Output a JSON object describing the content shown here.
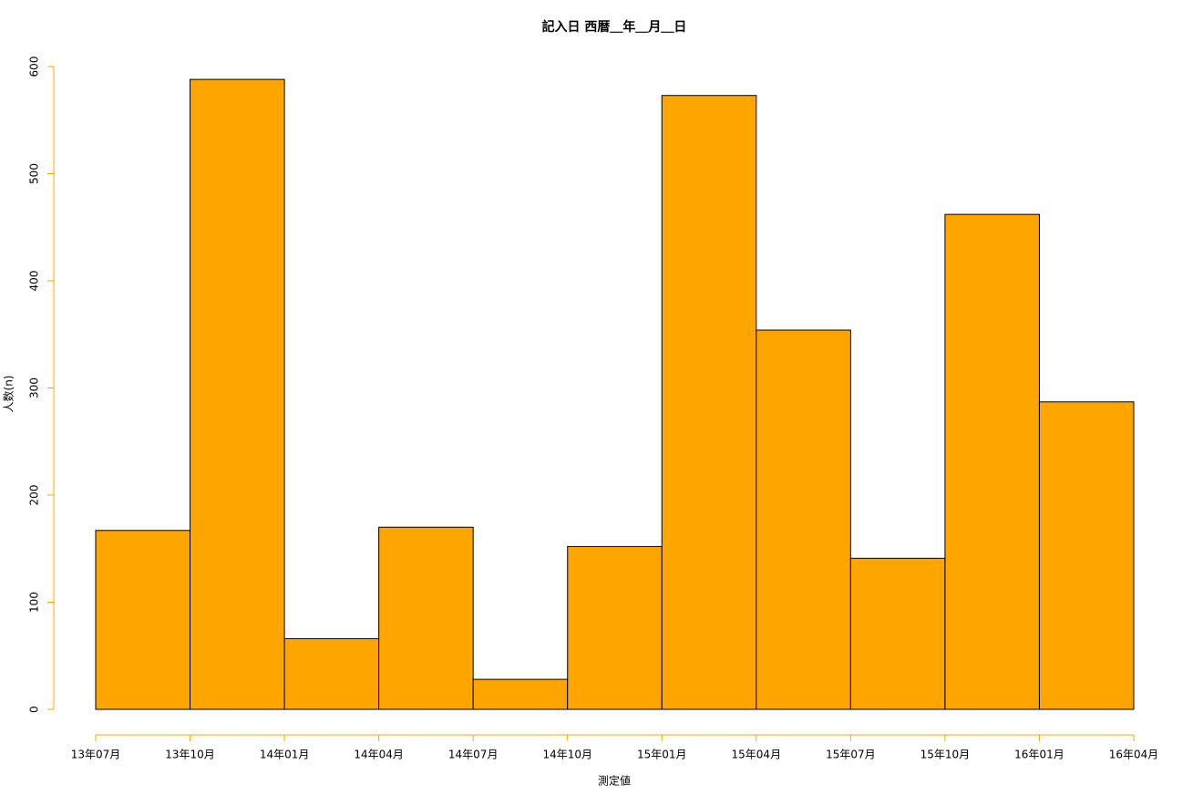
{
  "chart_data": {
    "type": "histogram",
    "title": "記入日 西暦＿年＿月＿日",
    "x_label": "測定値",
    "y_label": "人数(n)",
    "bins": [
      "13年07月",
      "13年10月",
      "14年01月",
      "14年04月",
      "14年07月",
      "14年10月",
      "15年01月",
      "15年04月",
      "15年07月",
      "15年10月",
      "16年01月",
      "16年04月"
    ],
    "values": [
      167,
      588,
      66,
      170,
      28,
      152,
      573,
      354,
      141,
      462,
      287
    ],
    "color": "#ffa500",
    "axis_color": "#ffa500",
    "ylim": [
      0,
      600
    ],
    "yticks": [
      0,
      100,
      200,
      300,
      400,
      500,
      600
    ]
  }
}
